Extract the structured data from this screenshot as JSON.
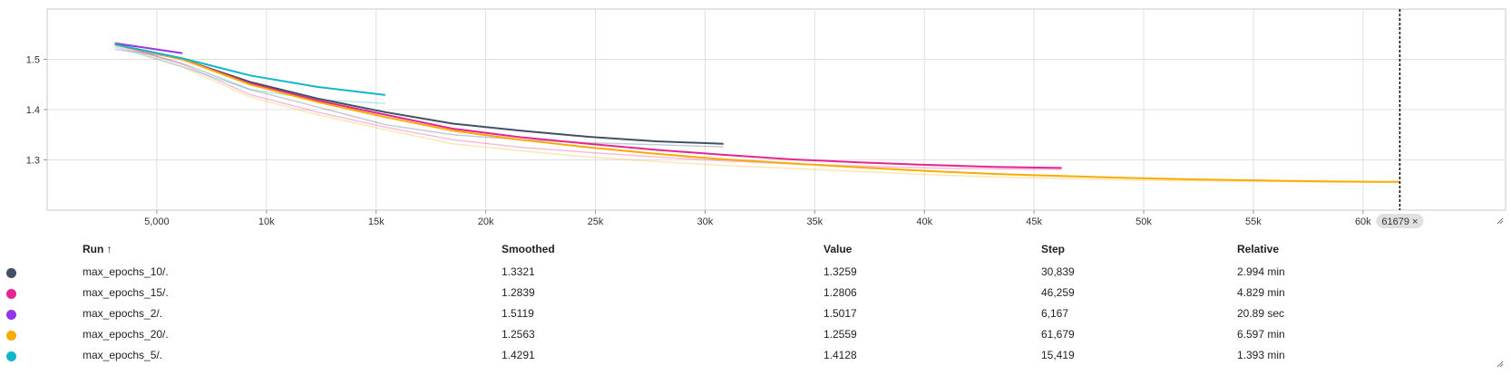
{
  "chart_data": {
    "type": "line",
    "title": "",
    "xlabel": "",
    "ylabel": "",
    "xlim": [
      0,
      66500
    ],
    "ylim": [
      1.2,
      1.6
    ],
    "x_ticks": [
      5000,
      10000,
      15000,
      20000,
      25000,
      30000,
      35000,
      40000,
      45000,
      50000,
      55000,
      60000
    ],
    "x_tick_labels": [
      "5,000",
      "10k",
      "15k",
      "20k",
      "25k",
      "30k",
      "35k",
      "40k",
      "45k",
      "50k",
      "55k",
      "60k"
    ],
    "y_ticks": [
      1.3,
      1.4,
      1.5
    ],
    "y_tick_labels": [
      "1.3",
      "1.4",
      "1.5"
    ],
    "grid": true,
    "cursor": {
      "step": 61679,
      "label": "61679 ×"
    },
    "series": [
      {
        "name": "max_epochs_10/.",
        "color": "#425066",
        "smoothed": [
          [
            3084,
            1.53
          ],
          [
            6168,
            1.5
          ],
          [
            9252,
            1.455
          ],
          [
            12335,
            1.422
          ],
          [
            15419,
            1.395
          ],
          [
            18503,
            1.372
          ],
          [
            21587,
            1.358
          ],
          [
            24671,
            1.346
          ],
          [
            27755,
            1.337
          ],
          [
            30839,
            1.332
          ]
        ],
        "raw": [
          [
            3084,
            1.53
          ],
          [
            6168,
            1.492
          ],
          [
            9252,
            1.44
          ],
          [
            12335,
            1.405
          ],
          [
            15419,
            1.37
          ],
          [
            18503,
            1.35
          ],
          [
            21587,
            1.34
          ],
          [
            24671,
            1.334
          ],
          [
            27755,
            1.33
          ],
          [
            30839,
            1.326
          ]
        ]
      },
      {
        "name": "max_epochs_15/.",
        "color": "#e52592",
        "smoothed": [
          [
            3084,
            1.53
          ],
          [
            6168,
            1.5
          ],
          [
            9252,
            1.452
          ],
          [
            12335,
            1.418
          ],
          [
            15419,
            1.39
          ],
          [
            18503,
            1.362
          ],
          [
            21587,
            1.345
          ],
          [
            24671,
            1.332
          ],
          [
            27755,
            1.32
          ],
          [
            30839,
            1.31
          ],
          [
            33923,
            1.301
          ],
          [
            37007,
            1.295
          ],
          [
            40091,
            1.29
          ],
          [
            43175,
            1.286
          ],
          [
            46259,
            1.284
          ]
        ],
        "raw": [
          [
            3084,
            1.53
          ],
          [
            6168,
            1.49
          ],
          [
            9252,
            1.43
          ],
          [
            12335,
            1.395
          ],
          [
            15419,
            1.365
          ],
          [
            18503,
            1.34
          ],
          [
            21587,
            1.325
          ],
          [
            24671,
            1.315
          ],
          [
            27755,
            1.306
          ],
          [
            30839,
            1.298
          ],
          [
            33923,
            1.292
          ],
          [
            37007,
            1.288
          ],
          [
            40091,
            1.284
          ],
          [
            43175,
            1.282
          ],
          [
            46259,
            1.281
          ]
        ]
      },
      {
        "name": "max_epochs_2/.",
        "color": "#9334e6",
        "smoothed": [
          [
            3084,
            1.532
          ],
          [
            6167,
            1.512
          ]
        ],
        "raw": [
          [
            3084,
            1.52
          ],
          [
            6167,
            1.502
          ]
        ]
      },
      {
        "name": "max_epochs_20/.",
        "color": "#f9ab00",
        "smoothed": [
          [
            3084,
            1.53
          ],
          [
            6168,
            1.5
          ],
          [
            9252,
            1.45
          ],
          [
            12335,
            1.415
          ],
          [
            15419,
            1.385
          ],
          [
            18503,
            1.358
          ],
          [
            21587,
            1.34
          ],
          [
            24671,
            1.325
          ],
          [
            27755,
            1.312
          ],
          [
            30839,
            1.301
          ],
          [
            33923,
            1.293
          ],
          [
            37007,
            1.285
          ],
          [
            40091,
            1.278
          ],
          [
            43175,
            1.272
          ],
          [
            46259,
            1.268
          ],
          [
            49343,
            1.264
          ],
          [
            52427,
            1.261
          ],
          [
            55511,
            1.259
          ],
          [
            58595,
            1.257
          ],
          [
            61679,
            1.2563
          ]
        ],
        "raw": [
          [
            3084,
            1.528
          ],
          [
            6168,
            1.485
          ],
          [
            9252,
            1.425
          ],
          [
            12335,
            1.39
          ],
          [
            15419,
            1.36
          ],
          [
            18503,
            1.332
          ],
          [
            21587,
            1.318
          ],
          [
            24671,
            1.306
          ],
          [
            27755,
            1.297
          ],
          [
            30839,
            1.289
          ],
          [
            33923,
            1.283
          ],
          [
            37007,
            1.277
          ],
          [
            40091,
            1.271
          ],
          [
            43175,
            1.266
          ],
          [
            46259,
            1.263
          ],
          [
            49343,
            1.26
          ],
          [
            52427,
            1.258
          ],
          [
            55511,
            1.257
          ],
          [
            58595,
            1.256
          ],
          [
            61679,
            1.2559
          ]
        ]
      },
      {
        "name": "max_epochs_5/.",
        "color": "#12b5cb",
        "smoothed": [
          [
            3084,
            1.53
          ],
          [
            6168,
            1.502
          ],
          [
            9252,
            1.468
          ],
          [
            12335,
            1.445
          ],
          [
            15419,
            1.429
          ]
        ],
        "raw": [
          [
            3084,
            1.525
          ],
          [
            6168,
            1.485
          ],
          [
            9252,
            1.44
          ],
          [
            12335,
            1.42
          ],
          [
            15419,
            1.412
          ]
        ]
      }
    ]
  },
  "table": {
    "headers": {
      "run": "Run ↑",
      "smoothed": "Smoothed",
      "value": "Value",
      "step": "Step",
      "relative": "Relative"
    },
    "rows": [
      {
        "run": "max_epochs_10/.",
        "smoothed": "1.3321",
        "value": "1.3259",
        "step": "30,839",
        "relative": "2.994 min",
        "color": "#425066"
      },
      {
        "run": "max_epochs_15/.",
        "smoothed": "1.2839",
        "value": "1.2806",
        "step": "46,259",
        "relative": "4.829 min",
        "color": "#e52592"
      },
      {
        "run": "max_epochs_2/.",
        "smoothed": "1.5119",
        "value": "1.5017",
        "step": "6,167",
        "relative": "20.89 sec",
        "color": "#9334e6"
      },
      {
        "run": "max_epochs_20/.",
        "smoothed": "1.2563",
        "value": "1.2559",
        "step": "61,679",
        "relative": "6.597 min",
        "color": "#f9ab00"
      },
      {
        "run": "max_epochs_5/.",
        "smoothed": "1.4291",
        "value": "1.4128",
        "step": "15,419",
        "relative": "1.393 min",
        "color": "#12b5cb"
      }
    ]
  }
}
